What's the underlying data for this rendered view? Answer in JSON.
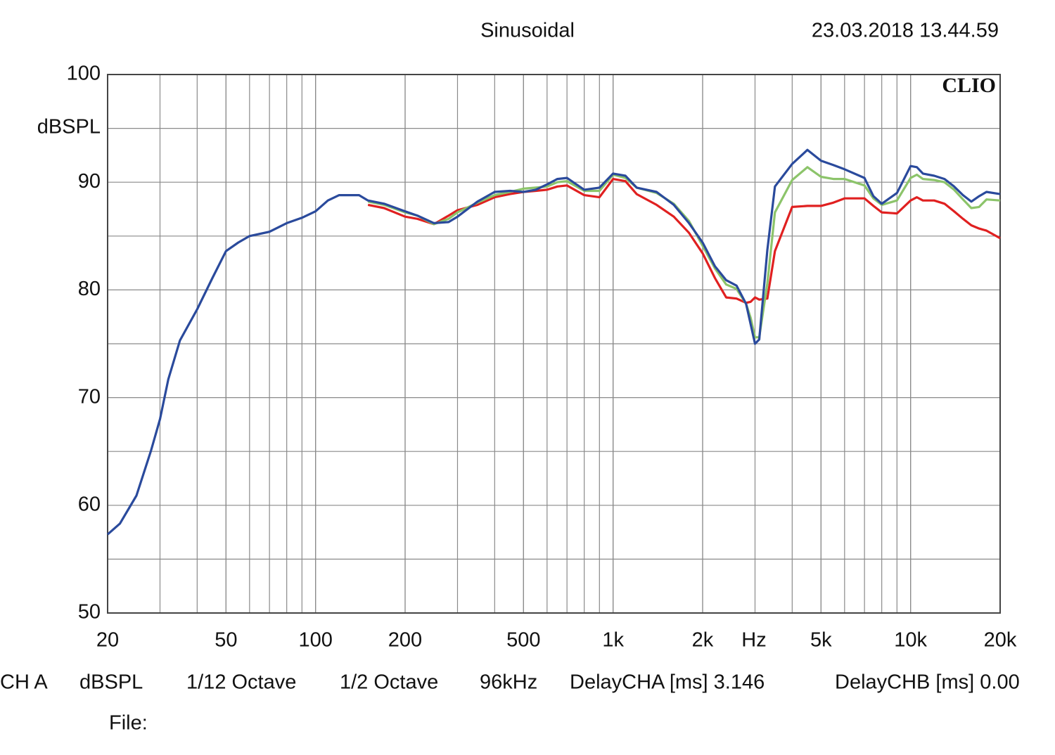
{
  "chart_data": {
    "type": "line",
    "title": "Sinusoidal",
    "timestamp": "23.03.2018 13.44.59",
    "brand": "CLIO",
    "y_label": "dBSPL",
    "x_label": "Hz",
    "x_scale": "log",
    "grid": true,
    "xlim": [
      20,
      20000
    ],
    "ylim": [
      50,
      100
    ],
    "xticks": [
      20,
      50,
      100,
      200,
      500,
      {
        "value": 1000,
        "label": "1k"
      },
      {
        "value": 2000,
        "label": "2k"
      },
      {
        "value": 5000,
        "label": "5k"
      },
      {
        "value": 10000,
        "label": "10k"
      },
      {
        "value": 20000,
        "label": "20k"
      }
    ],
    "yticks": [
      50,
      60,
      70,
      80,
      90,
      100
    ],
    "x": [
      20,
      22,
      25,
      28,
      30,
      32,
      35,
      40,
      45,
      50,
      55,
      60,
      70,
      80,
      90,
      100,
      110,
      120,
      140,
      150,
      170,
      200,
      220,
      250,
      280,
      300,
      350,
      400,
      450,
      500,
      550,
      600,
      650,
      700,
      800,
      900,
      1000,
      1100,
      1200,
      1400,
      1600,
      1800,
      2000,
      2200,
      2400,
      2600,
      2800,
      2900,
      3000,
      3100,
      3300,
      3500,
      4000,
      4500,
      5000,
      5500,
      6000,
      7000,
      7500,
      8000,
      9000,
      10000,
      10500,
      11000,
      12000,
      13000,
      14000,
      15000,
      16000,
      17000,
      18000,
      20000
    ],
    "series": [
      {
        "color": "#2a4a9c",
        "values": [
          57.3,
          58.3,
          60.9,
          65.1,
          68,
          71.7,
          75.3,
          78.2,
          81.1,
          83.6,
          84.4,
          85,
          85.4,
          86.2,
          86.7,
          87.3,
          88.3,
          88.8,
          88.8,
          88.3,
          88,
          87.3,
          86.9,
          86.2,
          86.3,
          86.8,
          88.2,
          89.1,
          89.2,
          89.1,
          89.3,
          89.8,
          90.3,
          90.4,
          89.3,
          89.5,
          90.8,
          90.6,
          89.5,
          89.1,
          87.9,
          86.2,
          84.4,
          82.2,
          80.9,
          80.4,
          78.7,
          76.8,
          75.0,
          75.4,
          83.7,
          89.6,
          91.7,
          93.0,
          92.0,
          91.6,
          91.2,
          90.4,
          88.7,
          88,
          89,
          91.5,
          91.4,
          90.8,
          90.6,
          90.3,
          89.6,
          88.8,
          88.2,
          88.7,
          89.1,
          88.9
        ]
      },
      {
        "color": "#8cc46a",
        "values": [
          null,
          null,
          null,
          null,
          null,
          null,
          null,
          null,
          null,
          null,
          null,
          null,
          null,
          null,
          null,
          null,
          null,
          null,
          null,
          88.2,
          87.9,
          87.2,
          86.9,
          86.1,
          86.6,
          87.2,
          88.1,
          88.8,
          89.1,
          89.4,
          89.5,
          89.6,
          90,
          90.1,
          89.2,
          89.2,
          90.7,
          90.4,
          89.5,
          89,
          88,
          86.4,
          84.1,
          82,
          80.5,
          80.1,
          78.7,
          77.4,
          75.6,
          75.6,
          80.6,
          87.2,
          90.2,
          91.4,
          90.5,
          90.3,
          90.3,
          89.7,
          88.5,
          87.9,
          88.3,
          90.4,
          90.7,
          90.3,
          90.2,
          90,
          89.3,
          88.4,
          87.6,
          87.7,
          88.4,
          88.3
        ]
      },
      {
        "color": "#e02020",
        "values": [
          null,
          null,
          null,
          null,
          null,
          null,
          null,
          null,
          null,
          null,
          null,
          null,
          null,
          null,
          null,
          null,
          null,
          null,
          null,
          87.9,
          87.6,
          86.8,
          86.6,
          86.1,
          86.9,
          87.4,
          87.9,
          88.6,
          88.9,
          89.1,
          89.2,
          89.3,
          89.6,
          89.7,
          88.8,
          88.6,
          90.3,
          90.1,
          88.9,
          87.9,
          86.8,
          85.3,
          83.4,
          81.1,
          79.3,
          79.2,
          78.8,
          78.9,
          79.3,
          79.1,
          79.2,
          83.6,
          87.7,
          87.8,
          87.8,
          88.1,
          88.5,
          88.5,
          87.8,
          87.2,
          87.1,
          88.3,
          88.6,
          88.3,
          88.3,
          88,
          87.3,
          86.6,
          86,
          85.7,
          85.5,
          84.8
        ]
      }
    ],
    "footer": [
      "CH A",
      "dBSPL",
      "1/12 Octave",
      "1/2 Octave",
      "96kHz",
      "DelayCHA [ms] 3.146",
      "DelayCHB [ms] 0.00"
    ],
    "file_label": "File:"
  }
}
